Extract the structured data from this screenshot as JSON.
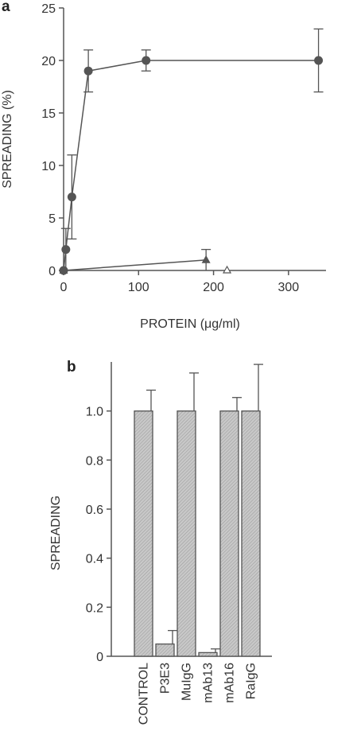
{
  "chart_data": [
    {
      "panel": "a",
      "type": "line",
      "xlabel": "PROTEIN (μg/ml)",
      "ylabel": "SPREADING (%)",
      "xlim": [
        0,
        350
      ],
      "ylim": [
        0,
        25
      ],
      "x_ticks": [
        "0",
        "100",
        "200",
        "300"
      ],
      "y_ticks": [
        "0",
        "5",
        "10",
        "15",
        "20",
        "25"
      ],
      "colors": {
        "axis": "#555555",
        "series": "#555555",
        "filled": "#555555",
        "open": "#ffffff"
      },
      "series": [
        {
          "marker": "filled-circle",
          "line": true,
          "points": [
            {
              "x": 0,
              "y": 0,
              "err": 0
            },
            {
              "x": 3,
              "y": 2,
              "err": 2
            },
            {
              "x": 11,
              "y": 7,
              "err": 4
            },
            {
              "x": 33,
              "y": 19,
              "err": 2
            },
            {
              "x": 110,
              "y": 20,
              "err": 1
            },
            {
              "x": 340,
              "y": 20,
              "err": 3
            }
          ]
        },
        {
          "marker": "filled-triangle",
          "line": true,
          "points": [
            {
              "x": 0,
              "y": 0,
              "err": 0
            },
            {
              "x": 190,
              "y": 1,
              "err": 1
            }
          ]
        },
        {
          "marker": "open-triangle",
          "line": false,
          "points": [
            {
              "x": 218,
              "y": 0,
              "err": 0
            }
          ]
        }
      ]
    },
    {
      "panel": "b",
      "type": "bar",
      "ylabel": "SPREADING",
      "categories": [
        "CONTROL",
        "P3E3",
        "MuIgG",
        "mAb13",
        "mAb16",
        "RaIgG"
      ],
      "values": [
        1.0,
        0.05,
        1.0,
        0.015,
        1.0,
        1.0
      ],
      "errors": [
        0.085,
        0.055,
        0.155,
        0.015,
        0.055,
        0.19
      ],
      "ylim": [
        0,
        1.2
      ],
      "y_ticks": [
        "0",
        "0.2",
        "0.4",
        "0.6",
        "0.8",
        "1.0"
      ],
      "colors": {
        "bar_fill": "#c8c8c8",
        "bar_stroke": "#555555",
        "hatch": "#9a9a9a",
        "axis": "#555555"
      }
    }
  ]
}
